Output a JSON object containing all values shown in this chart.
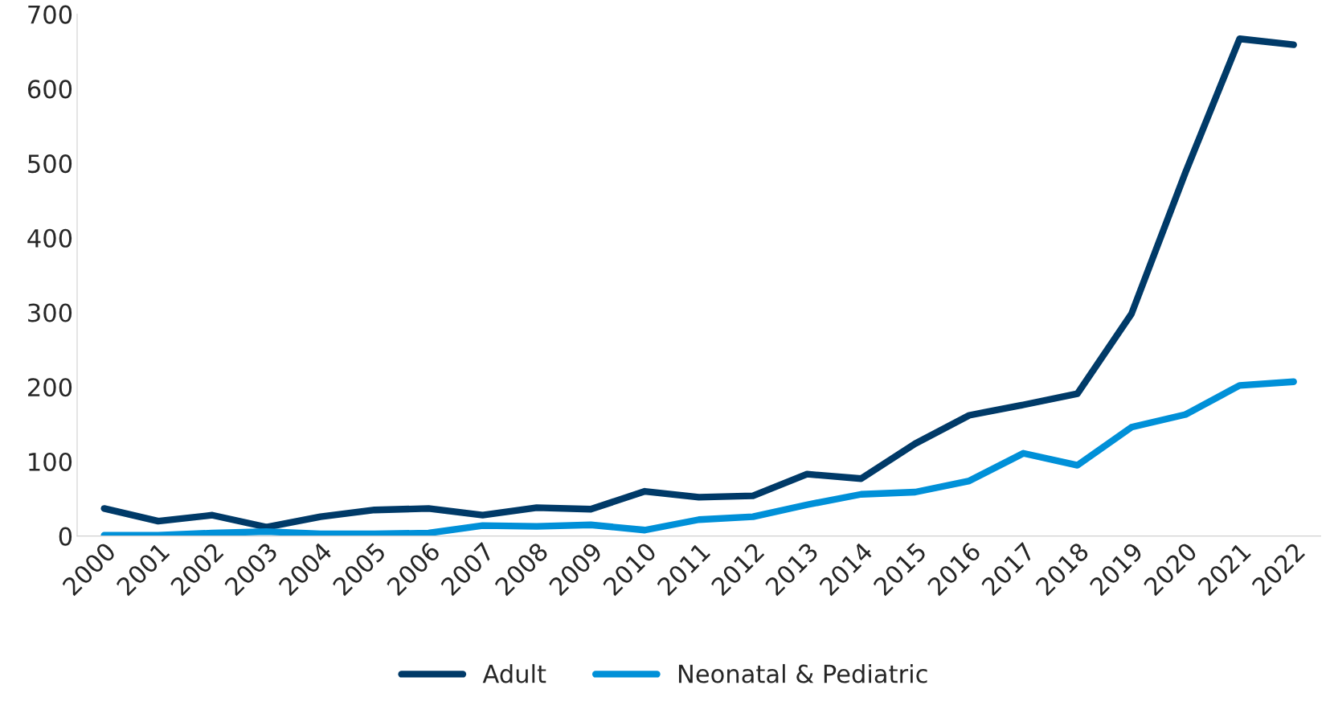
{
  "chart_data": {
    "type": "line",
    "categories": [
      "2000",
      "2001",
      "2002",
      "2003",
      "2004",
      "2005",
      "2006",
      "2007",
      "2008",
      "2009",
      "2010",
      "2011",
      "2012",
      "2013",
      "2014",
      "2015",
      "2016",
      "2017",
      "2018",
      "2019",
      "2020",
      "2021",
      "2022"
    ],
    "series": [
      {
        "name": "Adult",
        "color": "#003a68",
        "values": [
          37,
          20,
          28,
          12,
          26,
          35,
          37,
          28,
          38,
          36,
          60,
          52,
          54,
          83,
          77,
          124,
          162,
          176,
          191,
          298,
          488,
          667,
          659
        ]
      },
      {
        "name": "Neonatal & Pediatric",
        "color": "#0090d8",
        "values": [
          1,
          1,
          4,
          6,
          3,
          3,
          4,
          14,
          13,
          15,
          8,
          22,
          26,
          42,
          56,
          59,
          74,
          111,
          95,
          146,
          163,
          202,
          207
        ]
      }
    ],
    "ylim": [
      0,
      700
    ],
    "yticks": [
      0,
      100,
      200,
      300,
      400,
      500,
      600,
      700
    ],
    "grid": false,
    "legend": "bottom",
    "marker": "none",
    "line_style": "solid"
  }
}
